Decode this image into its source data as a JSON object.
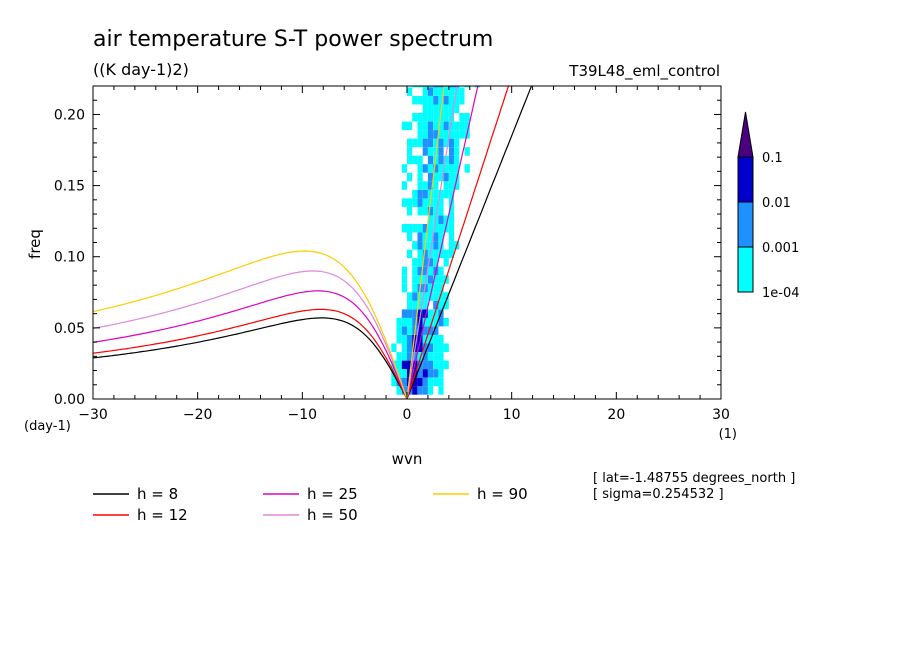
{
  "chart_data": {
    "type": "heatmap",
    "title": "air temperature S-T power spectrum",
    "subtitle": "((K day-1)2)",
    "run_label": "T39L48_eml_control",
    "xlabel": "wvn",
    "ylabel": "freq",
    "x_unit": "(1)",
    "y_unit": "(day-1)",
    "xlim": [
      -30,
      30
    ],
    "ylim": [
      0,
      0.22
    ],
    "x_ticks": [
      -30,
      -20,
      -10,
      0,
      10,
      20,
      30
    ],
    "x_tick_labels": [
      "−30",
      "−20",
      "−10",
      "0",
      "10",
      "20",
      "30"
    ],
    "y_ticks": [
      0.0,
      0.05,
      0.1,
      0.15,
      0.2
    ],
    "y_tick_labels": [
      "0.00",
      "0.05",
      "0.10",
      "0.15",
      "0.20"
    ],
    "colorbar": {
      "levels": [
        "1e-04",
        "0.001",
        "0.01",
        "0.1"
      ],
      "colors": [
        "#00ffff",
        "#1e90ff",
        "#0000cd",
        "#4b0082"
      ]
    },
    "dispersion_curves": [
      {
        "name": "h =  8",
        "color": "#000000",
        "eq_depth": 8
      },
      {
        "name": "h = 12",
        "color": "#ff0000",
        "eq_depth": 12
      },
      {
        "name": "h = 25",
        "color": "#e000c0",
        "eq_depth": 25
      },
      {
        "name": "h = 50",
        "color": "#dd88dd",
        "eq_depth": 50
      },
      {
        "name": "h = 90",
        "color": "#ffcc00",
        "eq_depth": 90
      }
    ],
    "annotations": {
      "lat": "[ lat=-1.48755 degrees_north ]",
      "sigma": "[ sigma=0.254532 ]"
    }
  }
}
